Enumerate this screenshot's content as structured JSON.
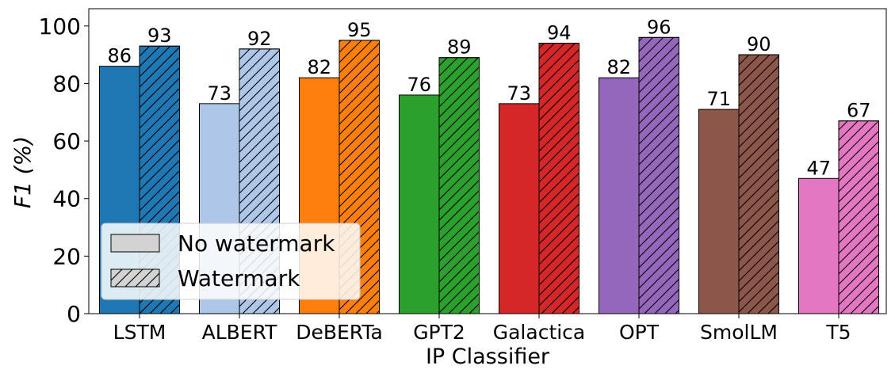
{
  "chart_data": {
    "type": "bar",
    "title": "",
    "xlabel": "IP Classifier",
    "ylabel": "F1 (%)",
    "ylim": [
      0,
      106
    ],
    "yticks": [
      0,
      20,
      40,
      60,
      80,
      100
    ],
    "categories": [
      "LSTM",
      "ALBERT",
      "DeBERTa",
      "GPT2",
      "Galactica",
      "OPT",
      "SmolLM",
      "T5"
    ],
    "category_colors": [
      "#1f77b4",
      "#aec7e8",
      "#ff7f0e",
      "#2ca02c",
      "#d62728",
      "#9467bd",
      "#8c564b",
      "#e377c2"
    ],
    "series": [
      {
        "name": "No watermark",
        "hatch": false,
        "values": [
          86,
          73,
          82,
          76,
          73,
          82,
          71,
          47
        ]
      },
      {
        "name": "Watermark",
        "hatch": true,
        "values": [
          93,
          92,
          95,
          89,
          94,
          96,
          90,
          67
        ]
      }
    ],
    "data_labels": true,
    "grid": false,
    "legend_position": "lower-left",
    "legend_swatch_color": "#d3d3d3"
  }
}
